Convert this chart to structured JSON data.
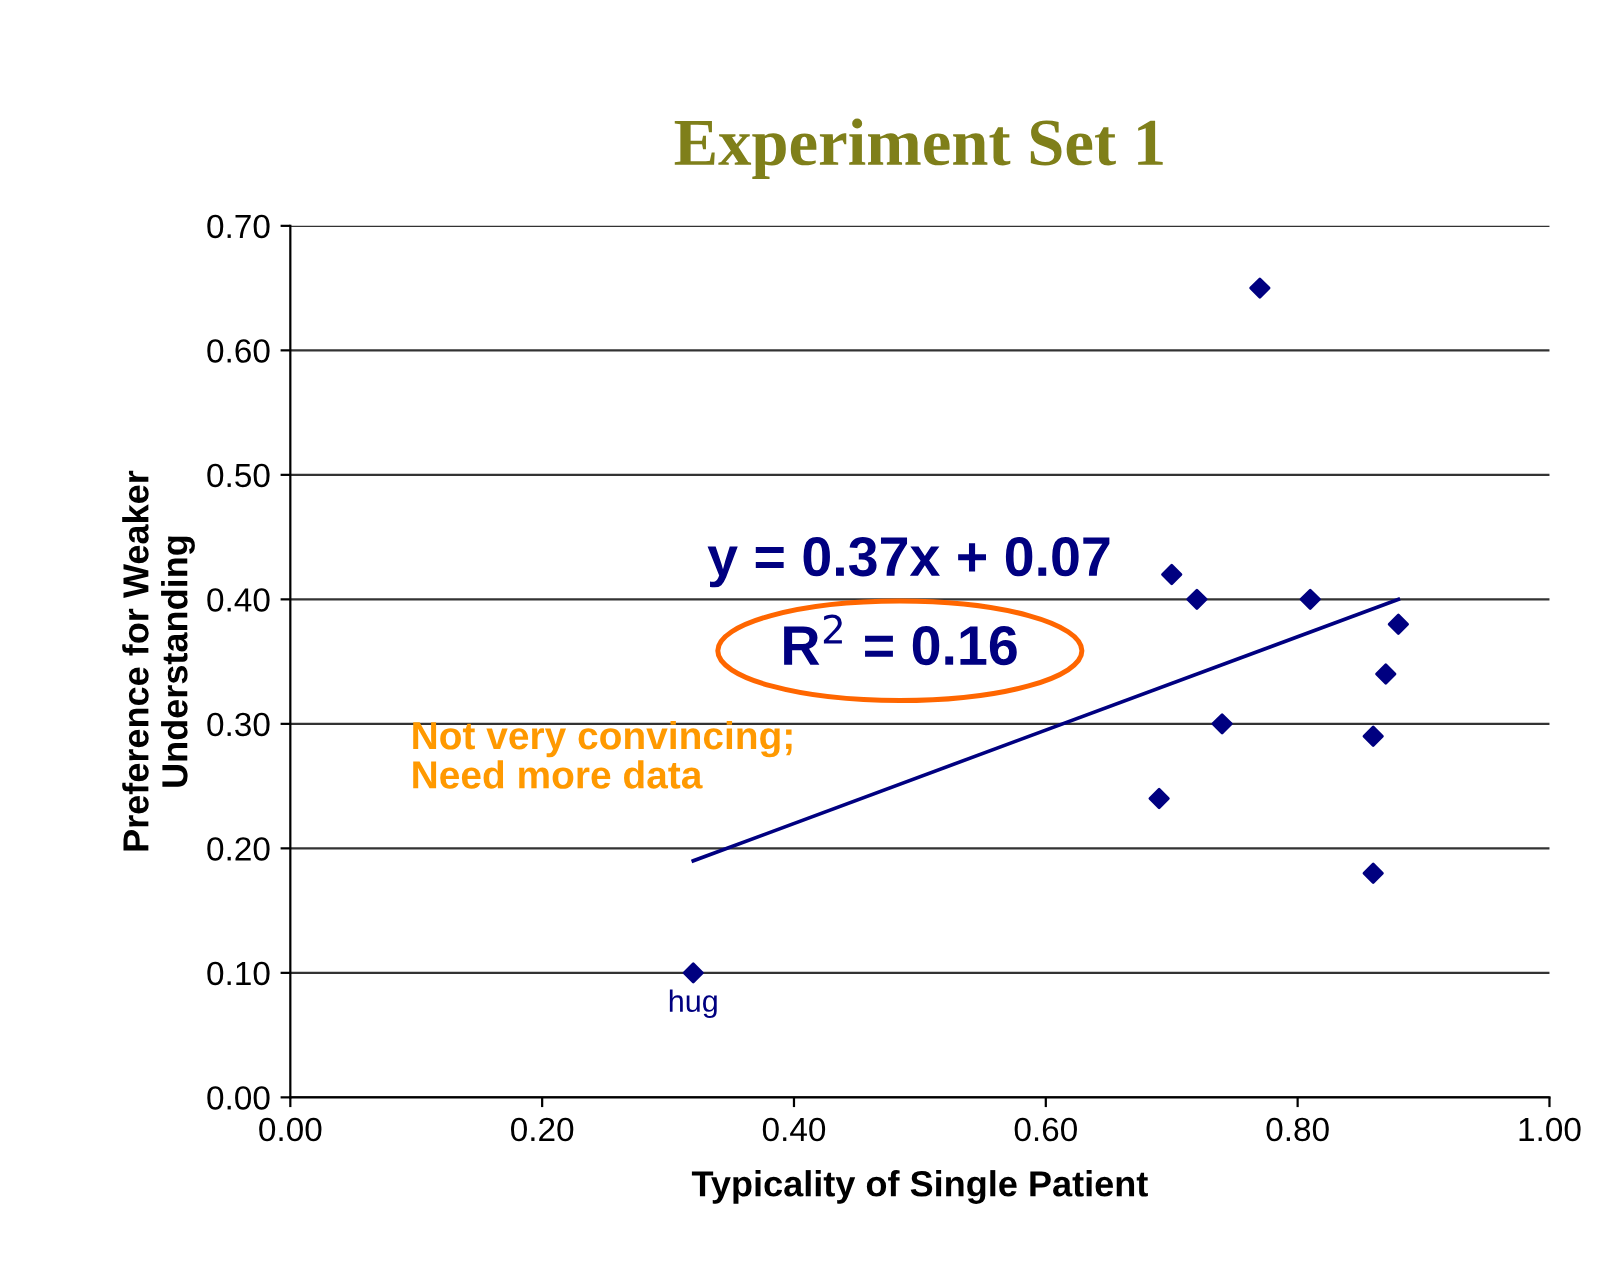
{
  "chart_data": {
    "type": "scatter",
    "title": "Experiment Set 1",
    "xlabel": "Typicality of Single Patient",
    "ylabel": "Preference for Weaker\nUnderstanding",
    "series": [
      {
        "color": "#000080",
        "x": [
          0.32,
          0.69,
          0.74,
          0.7,
          0.72,
          0.77,
          0.81,
          0.88,
          0.87,
          0.86,
          0.86
        ],
        "values": [
          0.1,
          0.24,
          0.3,
          0.42,
          0.4,
          0.65,
          0.4,
          0.38,
          0.34,
          0.29,
          0.18
        ],
        "marker": "diamond"
      },
      {
        "type": "line",
        "color": "#000080",
        "x": [
          0.32,
          0.88
        ],
        "values": [
          0.19,
          0.4
        ]
      }
    ],
    "annotations": [
      {
        "text": "hug",
        "x": 0.32,
        "y": 0.1
      },
      "y = 0.37x + 0.07",
      "R$^{2}$ = 0.16",
      "Not very convincing;\nNeed more data"
    ],
    "xlim": [
      0,
      1
    ],
    "xticks": [
      {
        "value": 0,
        "label": "0.00"
      },
      {
        "value": 0.2,
        "label": "0.20"
      },
      {
        "value": 0.4,
        "label": "0.40"
      },
      {
        "value": 0.6,
        "label": "0.60"
      },
      {
        "value": 0.8,
        "label": "0.80"
      },
      {
        "value": 1,
        "label": "1.00"
      }
    ],
    "ylim": [
      0,
      0.7
    ],
    "yticks": [
      {
        "value": 0,
        "label": "0.00"
      },
      {
        "value": 0.1,
        "label": "0.10"
      },
      {
        "value": 0.2,
        "label": "0.20"
      },
      {
        "value": 0.3,
        "label": "0.30"
      },
      {
        "value": 0.4,
        "label": "0.40"
      },
      {
        "value": 0.5,
        "label": "0.50"
      },
      {
        "value": 0.6,
        "label": "0.60"
      },
      {
        "value": 0.7,
        "label": "0.70"
      }
    ],
    "grid": "y",
    "legend": false
  }
}
